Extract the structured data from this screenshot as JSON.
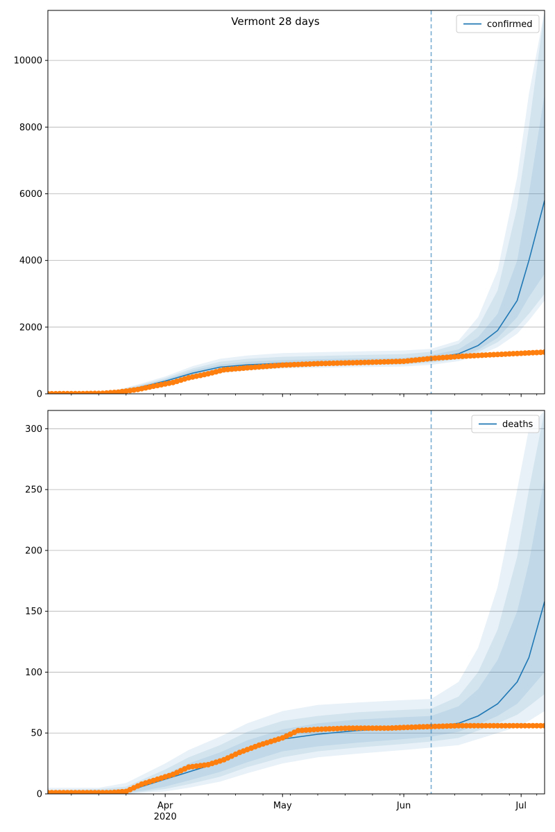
{
  "title": "Vermont 28 days",
  "colors": {
    "model": "#1f77b4",
    "observed": "#ff7f0e",
    "band": "#1f77b4",
    "grid": "#b0b0b0",
    "forecast_line": "#1f77b4"
  },
  "x_axis": {
    "start": "2020-03-02",
    "end": "2020-07-07",
    "forecast_start": "2020-06-08",
    "major_ticks": [
      {
        "date": "2020-04-01",
        "label": "Apr",
        "sublabel": "2020"
      },
      {
        "date": "2020-05-01",
        "label": "May",
        "sublabel": ""
      },
      {
        "date": "2020-06-01",
        "label": "Jun",
        "sublabel": ""
      },
      {
        "date": "2020-07-01",
        "label": "Jul",
        "sublabel": ""
      }
    ]
  },
  "chart_data": [
    {
      "type": "line",
      "legend": "confirmed",
      "legend_position": "top-right",
      "ylim": [
        0,
        11500
      ],
      "yticks": [
        0,
        2000,
        4000,
        6000,
        8000,
        10000
      ],
      "grid": "y",
      "model": {
        "x": [
          "2020-03-02",
          "2020-03-15",
          "2020-03-20",
          "2020-03-25",
          "2020-04-01",
          "2020-04-08",
          "2020-04-15",
          "2020-04-22",
          "2020-05-01",
          "2020-05-15",
          "2020-06-01",
          "2020-06-08",
          "2020-06-15",
          "2020-06-20",
          "2020-06-25",
          "2020-06-30",
          "2020-07-03",
          "2020-07-07"
        ],
        "y": [
          5,
          10,
          70,
          180,
          380,
          620,
          800,
          870,
          920,
          950,
          990,
          1060,
          1200,
          1450,
          1900,
          2800,
          4000,
          5800
        ]
      },
      "bands": [
        {
          "lower": [
            0,
            0,
            30,
            100,
            250,
            450,
            620,
            700,
            760,
            790,
            820,
            870,
            980,
            1150,
            1400,
            1800,
            2200,
            2800
          ],
          "upper": [
            30,
            40,
            130,
            280,
            520,
            830,
            1050,
            1150,
            1220,
            1260,
            1300,
            1350,
            1600,
            2300,
            3700,
            6500,
            9000,
            11500
          ]
        },
        {
          "lower": [
            0,
            0,
            40,
            120,
            280,
            500,
            680,
            760,
            820,
            850,
            880,
            930,
            1040,
            1250,
            1550,
            2000,
            2400,
            3000
          ],
          "upper": [
            20,
            30,
            110,
            250,
            470,
            760,
            960,
            1050,
            1110,
            1150,
            1190,
            1260,
            1500,
            2000,
            3100,
            5600,
            8000,
            11500
          ]
        },
        {
          "lower": [
            0,
            0,
            50,
            140,
            310,
            540,
            720,
            800,
            860,
            890,
            920,
            970,
            1100,
            1320,
            1680,
            2300,
            2900,
            3600
          ],
          "upper": [
            15,
            25,
            95,
            220,
            430,
            700,
            880,
            960,
            1010,
            1050,
            1080,
            1160,
            1330,
            1700,
            2400,
            4000,
            6000,
            9000
          ]
        }
      ],
      "observed": {
        "x": [
          "2020-03-02",
          "2020-03-10",
          "2020-03-16",
          "2020-03-20",
          "2020-03-25",
          "2020-03-30",
          "2020-04-03",
          "2020-04-07",
          "2020-04-12",
          "2020-04-16",
          "2020-04-22",
          "2020-05-01",
          "2020-05-10",
          "2020-05-20",
          "2020-06-01",
          "2020-06-08",
          "2020-06-15",
          "2020-06-25",
          "2020-07-07"
        ],
        "y": [
          2,
          5,
          15,
          50,
          130,
          250,
          340,
          480,
          600,
          720,
          780,
          860,
          905,
          935,
          975,
          1060,
          1120,
          1180,
          1250
        ]
      }
    },
    {
      "type": "line",
      "legend": "deaths",
      "legend_position": "top-right",
      "ylim": [
        0,
        315
      ],
      "yticks": [
        0,
        50,
        100,
        150,
        200,
        250,
        300
      ],
      "grid": "y",
      "model": {
        "x": [
          "2020-03-02",
          "2020-03-15",
          "2020-03-22",
          "2020-03-27",
          "2020-04-01",
          "2020-04-07",
          "2020-04-15",
          "2020-04-22",
          "2020-05-01",
          "2020-05-10",
          "2020-05-20",
          "2020-06-01",
          "2020-06-08",
          "2020-06-15",
          "2020-06-20",
          "2020-06-25",
          "2020-06-30",
          "2020-07-03",
          "2020-07-07"
        ],
        "y": [
          0.5,
          0.5,
          2,
          7,
          12,
          18,
          26,
          36,
          45,
          49,
          52,
          54,
          55,
          58,
          64,
          74,
          92,
          112,
          158
        ]
      },
      "bands": [
        {
          "lower": [
            0,
            0,
            0,
            1,
            2,
            5,
            10,
            17,
            25,
            30,
            33,
            36,
            38,
            40,
            45,
            50,
            55,
            60,
            68
          ],
          "upper": [
            5,
            5,
            9,
            17,
            25,
            36,
            47,
            58,
            68,
            73,
            75,
            77,
            78,
            92,
            120,
            170,
            250,
            300,
            315
          ]
        },
        {
          "lower": [
            0,
            0,
            0,
            2,
            4,
            8,
            14,
            22,
            30,
            35,
            38,
            41,
            43,
            46,
            52,
            58,
            65,
            72,
            82
          ],
          "upper": [
            3,
            4,
            6,
            13,
            20,
            30,
            40,
            51,
            60,
            64,
            67,
            69,
            70,
            80,
            100,
            135,
            195,
            250,
            315
          ]
        },
        {
          "lower": [
            0,
            0,
            1,
            3,
            6,
            11,
            18,
            26,
            35,
            39,
            42,
            45,
            47,
            51,
            57,
            64,
            74,
            85,
            100
          ],
          "upper": [
            2,
            3,
            4,
            10,
            16,
            25,
            34,
            44,
            53,
            58,
            61,
            63,
            64,
            72,
            86,
            110,
            150,
            190,
            260
          ]
        }
      ],
      "observed": {
        "x": [
          "2020-03-02",
          "2020-03-18",
          "2020-03-22",
          "2020-03-26",
          "2020-03-30",
          "2020-04-03",
          "2020-04-07",
          "2020-04-12",
          "2020-04-16",
          "2020-04-20",
          "2020-04-25",
          "2020-05-01",
          "2020-05-05",
          "2020-05-10",
          "2020-05-18",
          "2020-05-28",
          "2020-06-05",
          "2020-06-15",
          "2020-07-07"
        ],
        "y": [
          1,
          1,
          2,
          8,
          12,
          16,
          22,
          24,
          28,
          34,
          40,
          46,
          52,
          53,
          54,
          54,
          55,
          56,
          56
        ]
      }
    }
  ]
}
